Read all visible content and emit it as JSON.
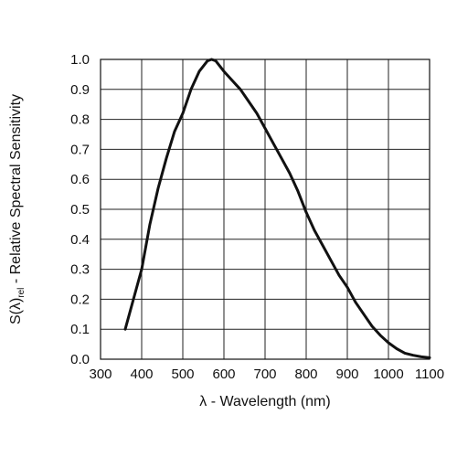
{
  "chart_data": {
    "type": "line",
    "title": "",
    "xlabel": "λ - Wavelength (nm)",
    "ylabel": {
      "part1": "S(λ)",
      "subscript": "rel",
      "part2": " - Relative Spectral Sensitivity"
    },
    "xlim": [
      300,
      1100
    ],
    "ylim": [
      0.0,
      1.0
    ],
    "x_ticks": [
      "300",
      "400",
      "500",
      "600",
      "700",
      "800",
      "900",
      "1000",
      "1100"
    ],
    "x_tick_values": [
      300,
      400,
      500,
      600,
      700,
      800,
      900,
      1000,
      1100
    ],
    "y_ticks": [
      "0.0",
      "0.1",
      "0.2",
      "0.3",
      "0.4",
      "0.5",
      "0.6",
      "0.7",
      "0.8",
      "0.9",
      "1.0"
    ],
    "y_tick_values": [
      0.0,
      0.1,
      0.2,
      0.3,
      0.4,
      0.5,
      0.6,
      0.7,
      0.8,
      0.9,
      1.0
    ],
    "grid": true,
    "series": [
      {
        "color": "#111111",
        "x": [
          360,
          380,
          400,
          420,
          440,
          460,
          480,
          500,
          520,
          540,
          560,
          570,
          580,
          600,
          620,
          640,
          660,
          680,
          700,
          720,
          740,
          760,
          780,
          800,
          820,
          840,
          860,
          880,
          900,
          920,
          940,
          960,
          980,
          1000,
          1020,
          1040,
          1060,
          1080,
          1100
        ],
        "y": [
          0.1,
          0.2,
          0.3,
          0.45,
          0.57,
          0.67,
          0.76,
          0.82,
          0.9,
          0.96,
          0.995,
          1.0,
          0.995,
          0.96,
          0.93,
          0.9,
          0.86,
          0.82,
          0.77,
          0.72,
          0.67,
          0.62,
          0.56,
          0.49,
          0.43,
          0.38,
          0.33,
          0.28,
          0.24,
          0.19,
          0.15,
          0.11,
          0.08,
          0.055,
          0.035,
          0.02,
          0.013,
          0.008,
          0.005
        ]
      }
    ]
  }
}
